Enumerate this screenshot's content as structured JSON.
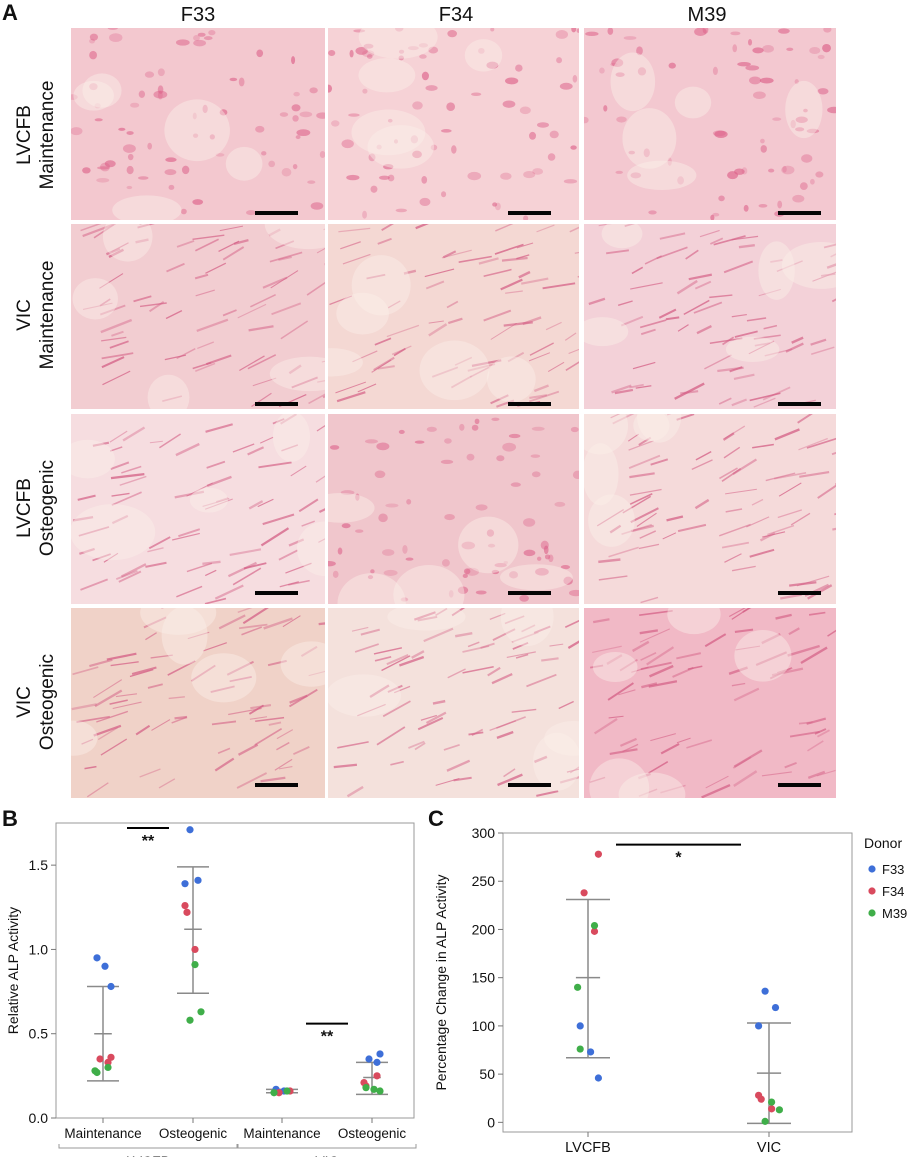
{
  "panelA": {
    "letter": "A",
    "columns": [
      "F33",
      "F34",
      "M39"
    ],
    "rows": [
      {
        "line1": "LVCFB",
        "line2": "Maintenance"
      },
      {
        "line1": "VIC",
        "line2": "Maintenance"
      },
      {
        "line1": "LVCFB",
        "line2": "Osteogenic"
      },
      {
        "line1": "VIC",
        "line2": "Osteogenic"
      }
    ]
  },
  "chart_data": [
    {
      "panel": "B",
      "type": "scatter",
      "ylabel": "Relative ALP Activity",
      "ylim": [
        0,
        1.75
      ],
      "yticks": [
        0.0,
        0.5,
        1.0,
        1.5
      ],
      "ytick_labels": [
        "0.0",
        "0.5",
        "1.0",
        "1.5"
      ],
      "categories": [
        "Maintenance",
        "Osteogenic",
        "Maintenance",
        "Osteogenic"
      ],
      "groups": [
        {
          "label": "LVCFB",
          "categories": [
            0,
            1
          ]
        },
        {
          "label": "VIC",
          "categories": [
            2,
            3
          ]
        }
      ],
      "series": [
        {
          "name": "F33",
          "color": "#3e6fd8",
          "points": [
            [
              0,
              0.95
            ],
            [
              0,
              0.9
            ],
            [
              0,
              0.78
            ],
            [
              1,
              1.71
            ],
            [
              1,
              1.41
            ],
            [
              1,
              1.39
            ],
            [
              2,
              0.17
            ],
            [
              2,
              0.16
            ],
            [
              3,
              0.38
            ],
            [
              3,
              0.35
            ],
            [
              3,
              0.33
            ]
          ]
        },
        {
          "name": "F34",
          "color": "#d94a5e",
          "points": [
            [
              0,
              0.36
            ],
            [
              0,
              0.35
            ],
            [
              0,
              0.33
            ],
            [
              1,
              1.26
            ],
            [
              1,
              1.22
            ],
            [
              1,
              1.0
            ],
            [
              2,
              0.16
            ],
            [
              2,
              0.15
            ],
            [
              3,
              0.25
            ],
            [
              3,
              0.21
            ],
            [
              3,
              0.19
            ]
          ]
        },
        {
          "name": "M39",
          "color": "#3fae49",
          "points": [
            [
              0,
              0.3
            ],
            [
              0,
              0.28
            ],
            [
              0,
              0.27
            ],
            [
              1,
              0.91
            ],
            [
              1,
              0.63
            ],
            [
              1,
              0.58
            ],
            [
              2,
              0.16
            ],
            [
              2,
              0.15
            ],
            [
              3,
              0.18
            ],
            [
              3,
              0.17
            ],
            [
              3,
              0.16
            ]
          ]
        }
      ],
      "error_bars": [
        {
          "category": 0,
          "mean": 0.5,
          "low": 0.22,
          "high": 0.78
        },
        {
          "category": 1,
          "mean": 1.12,
          "low": 0.74,
          "high": 1.49
        },
        {
          "category": 2,
          "mean": 0.16,
          "low": 0.15,
          "high": 0.17
        },
        {
          "category": 3,
          "mean": 0.24,
          "low": 0.14,
          "high": 0.33
        }
      ],
      "significance": [
        {
          "from": 0,
          "to": 1,
          "y": 1.72,
          "label": "**"
        },
        {
          "from": 2,
          "to": 3,
          "y": 0.56,
          "label": "**"
        }
      ]
    },
    {
      "panel": "C",
      "type": "scatter",
      "ylabel": "Percentage Change in ALP Activity",
      "ylim": [
        -10,
        300
      ],
      "yticks": [
        0,
        50,
        100,
        150,
        200,
        250,
        300
      ],
      "ytick_labels": [
        "0",
        "50",
        "100",
        "150",
        "200",
        "250",
        "300"
      ],
      "categories": [
        "LVCFB",
        "VIC"
      ],
      "series": [
        {
          "name": "F33",
          "color": "#3e6fd8",
          "points": [
            [
              0,
              100
            ],
            [
              0,
              73
            ],
            [
              0,
              46
            ],
            [
              1,
              136
            ],
            [
              1,
              119
            ],
            [
              1,
              100
            ]
          ]
        },
        {
          "name": "F34",
          "color": "#d94a5e",
          "points": [
            [
              0,
              278
            ],
            [
              0,
              238
            ],
            [
              0,
              198
            ],
            [
              1,
              28
            ],
            [
              1,
              24
            ],
            [
              1,
              14
            ]
          ]
        },
        {
          "name": "M39",
          "color": "#3fae49",
          "points": [
            [
              0,
              204
            ],
            [
              0,
              140
            ],
            [
              0,
              76
            ],
            [
              1,
              21
            ],
            [
              1,
              13
            ],
            [
              1,
              1
            ]
          ]
        }
      ],
      "error_bars": [
        {
          "category": 0,
          "mean": 150,
          "low": 67,
          "high": 231
        },
        {
          "category": 1,
          "mean": 51,
          "low": -1,
          "high": 103
        }
      ],
      "significance": [
        {
          "from": 0,
          "to": 1,
          "y": 288,
          "label": "*"
        }
      ],
      "legend": {
        "title": "Donor",
        "position": "right",
        "entries": [
          "F33",
          "F34",
          "M39"
        ]
      }
    }
  ]
}
